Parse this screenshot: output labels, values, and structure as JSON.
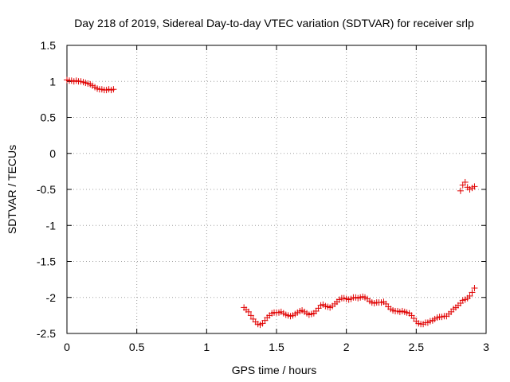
{
  "chart_data": {
    "type": "scatter",
    "title": "Day 218 of 2019, Sidereal Day-to-day VTEC variation (SDTVAR) for receiver srlp",
    "xlabel": "GPS time / hours",
    "ylabel": "SDTVAR / TECUs",
    "xlim": [
      0,
      3
    ],
    "ylim": [
      -2.5,
      1.5
    ],
    "x_ticks": [
      0,
      0.5,
      1,
      1.5,
      2,
      2.5,
      3
    ],
    "x_tick_labels": [
      "0",
      "0.5",
      "1",
      "1.5",
      "2",
      "2.5",
      "3"
    ],
    "y_ticks": [
      1.5,
      1,
      0.5,
      0,
      -0.5,
      -1,
      -1.5,
      -2,
      -2.5
    ],
    "y_tick_labels": [
      "1.5",
      "1",
      "0.5",
      "0",
      "-0.5",
      "-1",
      "-1.5",
      "-2",
      "-2.5"
    ],
    "grid": true,
    "marker": "+",
    "color": "#e00000",
    "series": [
      {
        "x": [
          0.0,
          0.017,
          0.033,
          0.05,
          0.067,
          0.083,
          0.1,
          0.117,
          0.133,
          0.15,
          0.167,
          0.183,
          0.2,
          0.217,
          0.233,
          0.25,
          0.267,
          0.283,
          0.3,
          0.317,
          0.333
        ],
        "y": [
          1.02,
          1.01,
          1.01,
          1.0,
          1.01,
          1.0,
          1.0,
          0.99,
          0.98,
          0.97,
          0.96,
          0.94,
          0.92,
          0.9,
          0.89,
          0.89,
          0.88,
          0.88,
          0.89,
          0.88,
          0.89
        ]
      },
      {
        "x": [
          1.267,
          1.283,
          1.3,
          1.317,
          1.333,
          1.35,
          1.367,
          1.383,
          1.4,
          1.417,
          1.433,
          1.45,
          1.467,
          1.483,
          1.5,
          1.517,
          1.533,
          1.55,
          1.567,
          1.583,
          1.6,
          1.617,
          1.633,
          1.65,
          1.667,
          1.683,
          1.7,
          1.717,
          1.733,
          1.75,
          1.767,
          1.783,
          1.8,
          1.817,
          1.833,
          1.85,
          1.867,
          1.883,
          1.9,
          1.917,
          1.933,
          1.95,
          1.967,
          1.983,
          2.0,
          2.017,
          2.033,
          2.05,
          2.067,
          2.083,
          2.1,
          2.117,
          2.133,
          2.15,
          2.167,
          2.183,
          2.2,
          2.217,
          2.233,
          2.25,
          2.267,
          2.283,
          2.3,
          2.317,
          2.333,
          2.35,
          2.367,
          2.383,
          2.4,
          2.417,
          2.433,
          2.45,
          2.467,
          2.483,
          2.5,
          2.517,
          2.533,
          2.55,
          2.567,
          2.583,
          2.6,
          2.617,
          2.633,
          2.65,
          2.667,
          2.683,
          2.7,
          2.717,
          2.733,
          2.75,
          2.767,
          2.783,
          2.8,
          2.817,
          2.833,
          2.85,
          2.867,
          2.883,
          2.9,
          2.917
        ],
        "y": [
          -2.14,
          -2.17,
          -2.2,
          -2.25,
          -2.3,
          -2.34,
          -2.37,
          -2.38,
          -2.36,
          -2.32,
          -2.28,
          -2.25,
          -2.22,
          -2.21,
          -2.21,
          -2.21,
          -2.2,
          -2.22,
          -2.24,
          -2.25,
          -2.26,
          -2.25,
          -2.23,
          -2.21,
          -2.19,
          -2.18,
          -2.2,
          -2.22,
          -2.24,
          -2.23,
          -2.22,
          -2.19,
          -2.15,
          -2.11,
          -2.1,
          -2.12,
          -2.13,
          -2.14,
          -2.12,
          -2.09,
          -2.06,
          -2.03,
          -2.01,
          -2.01,
          -2.02,
          -2.03,
          -2.02,
          -2.0,
          -2.0,
          -2.01,
          -2.0,
          -1.99,
          -2.0,
          -2.02,
          -2.05,
          -2.07,
          -2.08,
          -2.07,
          -2.07,
          -2.07,
          -2.06,
          -2.09,
          -2.13,
          -2.16,
          -2.18,
          -2.19,
          -2.19,
          -2.2,
          -2.19,
          -2.2,
          -2.21,
          -2.22,
          -2.25,
          -2.29,
          -2.33,
          -2.36,
          -2.37,
          -2.37,
          -2.35,
          -2.35,
          -2.33,
          -2.32,
          -2.3,
          -2.28,
          -2.27,
          -2.27,
          -2.26,
          -2.26,
          -2.23,
          -2.2,
          -2.16,
          -2.14,
          -2.11,
          -2.08,
          -2.04,
          -2.03,
          -2.01,
          -1.98,
          -1.93,
          -1.87
        ]
      },
      {
        "x": [
          2.817,
          2.833,
          2.85,
          2.867,
          2.883,
          2.9,
          2.917
        ],
        "y": [
          -0.52,
          -0.44,
          -0.4,
          -0.47,
          -0.5,
          -0.48,
          -0.46
        ]
      }
    ]
  }
}
